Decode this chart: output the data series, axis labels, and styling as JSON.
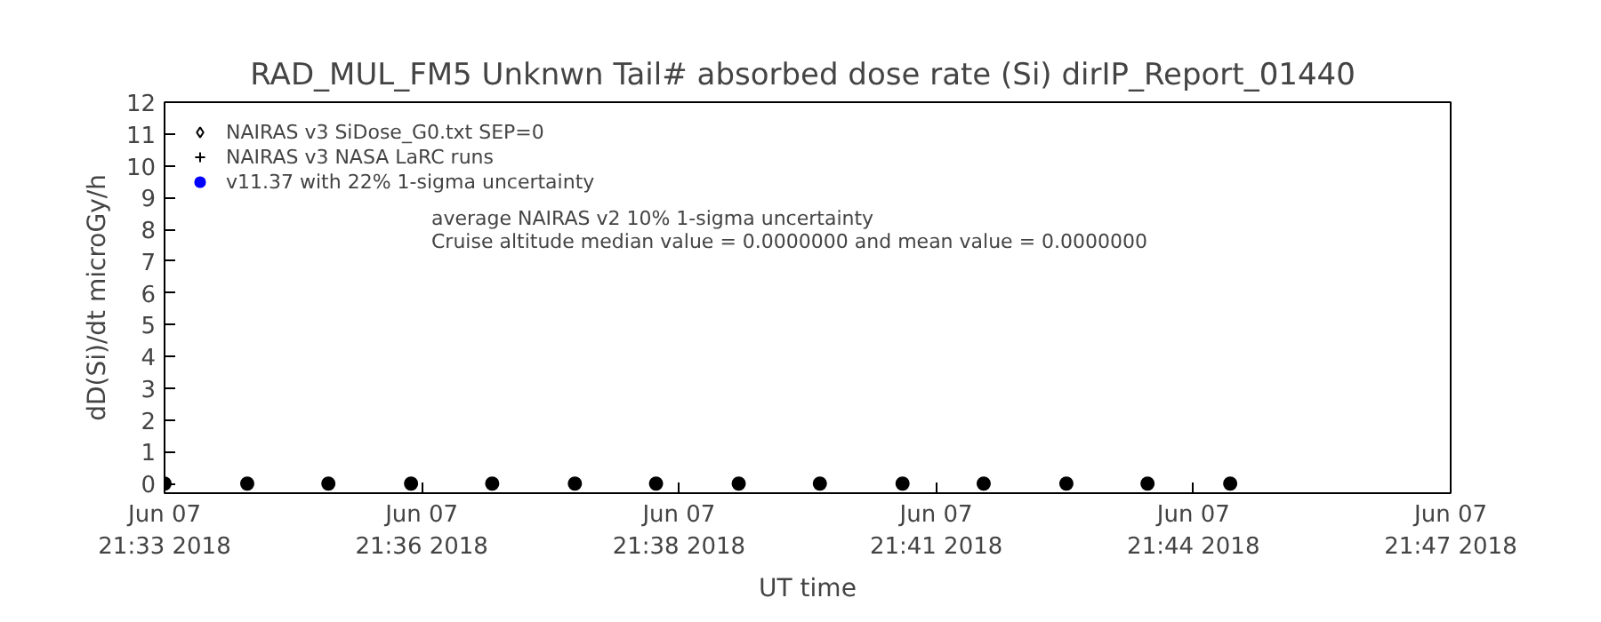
{
  "chart_data": {
    "type": "scatter",
    "title": "RAD_MUL_FM5 Unknwn Tail#  absorbed dose rate (Si) dirIP_Report_01440",
    "xlabel": "UT time",
    "ylabel": "dD(Si)/dt microGy/h",
    "annotations": [
      "average NAIRAS v2 10% 1-sigma uncertainty",
      "Cruise altitude median value = 0.0000000 and mean value = 0.0000000"
    ],
    "x": [
      "2018-06-07T21:33:18",
      "2018-06-07T21:34:12",
      "2018-06-07T21:35:05",
      "2018-06-07T21:35:59",
      "2018-06-07T21:36:52",
      "2018-06-07T21:37:46",
      "2018-06-07T21:38:39",
      "2018-06-07T21:39:33",
      "2018-06-07T21:40:26",
      "2018-06-07T21:41:20",
      "2018-06-07T21:42:13",
      "2018-06-07T21:43:07",
      "2018-06-07T21:44:00",
      "2018-06-07T21:44:54"
    ],
    "xlim": [
      "2018-06-07T21:33:18",
      "2018-06-07T21:47:18"
    ],
    "xticks": [
      {
        "value": "2018-06-07T21:33:18",
        "label": "Jun 07\n21:33 2018"
      },
      {
        "value": "2018-06-07T21:36:06",
        "label": "Jun 07\n21:36 2018"
      },
      {
        "value": "2018-06-07T21:38:54",
        "label": "Jun 07\n21:38 2018"
      },
      {
        "value": "2018-06-07T21:41:42",
        "label": "Jun 07\n21:41 2018"
      },
      {
        "value": "2018-06-07T21:44:30",
        "label": "Jun 07\n21:44 2018"
      },
      {
        "value": "2018-06-07T21:47:18",
        "label": "Jun 07\n21:47 2018"
      }
    ],
    "ylim": [
      -0.3,
      12
    ],
    "yticks": [
      0,
      1,
      2,
      3,
      4,
      5,
      6,
      7,
      8,
      9,
      10,
      11,
      12
    ],
    "legend": "top left",
    "series": [
      {
        "color": "#000000",
        "marker": "circle",
        "values": [
          0,
          0,
          0,
          0,
          0,
          0,
          0,
          0,
          0,
          0,
          0,
          0,
          0,
          0
        ]
      },
      {
        "name": "NAIRAS v3 SiDose_G0.txt SEP=0",
        "color": "#000000",
        "marker": "diamond",
        "values": [
          null,
          null,
          null,
          null,
          null,
          null,
          null,
          null,
          null,
          null,
          null,
          null,
          null,
          null
        ]
      },
      {
        "name": "NAIRAS v3 NASA LaRC runs",
        "color": "#000000",
        "marker": "cross",
        "values": [
          null,
          null,
          null,
          null,
          null,
          null,
          null,
          null,
          null,
          null,
          null,
          null,
          null,
          null
        ]
      },
      {
        "name": "v11.37 with 22% 1-sigma uncertainty",
        "color": "#0000ff",
        "marker": "circle",
        "values": [
          null,
          null,
          null,
          null,
          null,
          null,
          null,
          null,
          null,
          null,
          null,
          null,
          null,
          null
        ]
      }
    ]
  }
}
